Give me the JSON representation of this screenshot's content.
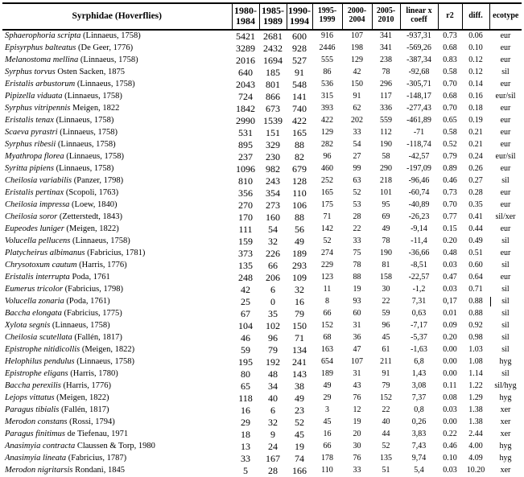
{
  "table": {
    "headers": [
      "Syrphidae (Hoverflies)",
      "1980-\n1984",
      "1985-\n1989",
      "1990-\n1994",
      "1995-\n1999",
      "2000-\n2004",
      "2005-\n2010",
      "linear x\ncoeff",
      "r2",
      "diff.",
      "ecotype"
    ],
    "rows": [
      {
        "species": "Sphaerophoria scripta",
        "author": "(Linnaeus, 1758)",
        "counts": [
          "5421",
          "2681",
          "600",
          "916",
          "107",
          "341"
        ],
        "coeff": "-937,31",
        "r2": "0.73",
        "diff": "0.06",
        "ecotype": "eur",
        "stray_bar": false
      },
      {
        "species": "Episyrphus balteatus",
        "author": "(De Geer, 1776)",
        "counts": [
          "3289",
          "2432",
          "928",
          "2446",
          "198",
          "341"
        ],
        "coeff": "-569,26",
        "r2": "0.68",
        "diff": "0.10",
        "ecotype": "eur",
        "stray_bar": false
      },
      {
        "species": "Melanostoma mellina",
        "author": "(Linnaeus, 1758)",
        "counts": [
          "2016",
          "1694",
          "527",
          "555",
          "129",
          "238"
        ],
        "coeff": "-387,34",
        "r2": "0.83",
        "diff": "0.12",
        "ecotype": "eur",
        "stray_bar": false
      },
      {
        "species": "Syrphus torvus",
        "author": "Osten Sacken, 1875",
        "counts": [
          "640",
          "185",
          "91",
          "86",
          "42",
          "78"
        ],
        "coeff": "-92,68",
        "r2": "0.58",
        "diff": "0.12",
        "ecotype": "sil",
        "stray_bar": false
      },
      {
        "species": "Eristalis arbustorum",
        "author": "(Linnaeus, 1758)",
        "counts": [
          "2043",
          "801",
          "548",
          "536",
          "150",
          "296"
        ],
        "coeff": "-305,71",
        "r2": "0.70",
        "diff": "0.14",
        "ecotype": "eur",
        "stray_bar": false
      },
      {
        "species": "Pipizella viduata",
        "author": "(Linnaeus, 1758)",
        "counts": [
          "724",
          "866",
          "141",
          "315",
          "91",
          "117"
        ],
        "coeff": "-148,17",
        "r2": "0.68",
        "diff": "0.16",
        "ecotype": "eur/sil",
        "stray_bar": false
      },
      {
        "species": "Syrphus vitripennis",
        "author": "Meigen, 1822",
        "counts": [
          "1842",
          "673",
          "740",
          "393",
          "62",
          "336"
        ],
        "coeff": "-277,43",
        "r2": "0.70",
        "diff": "0.18",
        "ecotype": "eur",
        "stray_bar": false
      },
      {
        "species": "Eristalis tenax",
        "author": "(Linnaeus, 1758)",
        "counts": [
          "2990",
          "1539",
          "422",
          "422",
          "202",
          "559"
        ],
        "coeff": "-461,89",
        "r2": "0.65",
        "diff": "0.19",
        "ecotype": "eur",
        "stray_bar": false
      },
      {
        "species": "Scaeva pyrastri",
        "author": "(Linnaeus, 1758)",
        "counts": [
          "531",
          "151",
          "165",
          "129",
          "33",
          "112"
        ],
        "coeff": "-71",
        "r2": "0.58",
        "diff": "0.21",
        "ecotype": "eur",
        "stray_bar": false
      },
      {
        "species": "Syrphus ribesii",
        "author": "(Linnaeus, 1758)",
        "counts": [
          "895",
          "329",
          "88",
          "282",
          "54",
          "190"
        ],
        "coeff": "-118,74",
        "r2": "0.52",
        "diff": "0.21",
        "ecotype": "eur",
        "stray_bar": false
      },
      {
        "species": "Myathropa florea",
        "author": "(Linnaeus, 1758)",
        "counts": [
          "237",
          "230",
          "82",
          "96",
          "27",
          "58"
        ],
        "coeff": "-42,57",
        "r2": "0.79",
        "diff": "0.24",
        "ecotype": "eur/sil",
        "stray_bar": false
      },
      {
        "species": "Syritta pipiens",
        "author": "(Linnaeus, 1758)",
        "counts": [
          "1096",
          "982",
          "679",
          "460",
          "99",
          "290"
        ],
        "coeff": "-197,09",
        "r2": "0.89",
        "diff": "0.26",
        "ecotype": "eur",
        "stray_bar": false
      },
      {
        "species": "Cheilosia variabilis",
        "author": "(Panzer, 1798)",
        "counts": [
          "810",
          "243",
          "128",
          "252",
          "63",
          "218"
        ],
        "coeff": "-96,46",
        "r2": "0.46",
        "diff": "0.27",
        "ecotype": "sil",
        "stray_bar": false
      },
      {
        "species": "Eristalis pertinax",
        "author": "(Scopoli, 1763)",
        "counts": [
          "356",
          "354",
          "110",
          "165",
          "52",
          "101"
        ],
        "coeff": "-60,74",
        "r2": "0.73",
        "diff": "0.28",
        "ecotype": "eur",
        "stray_bar": false
      },
      {
        "species": "Cheilosia impressa",
        "author": "(Loew, 1840)",
        "counts": [
          "270",
          "273",
          "106",
          "175",
          "53",
          "95"
        ],
        "coeff": "-40,89",
        "r2": "0.70",
        "diff": "0.35",
        "ecotype": "eur",
        "stray_bar": false
      },
      {
        "species": "Cheilosia soror",
        "author": "(Zetterstedt, 1843)",
        "counts": [
          "170",
          "160",
          "88",
          "71",
          "28",
          "69"
        ],
        "coeff": "-26,23",
        "r2": "0.77",
        "diff": "0.41",
        "ecotype": "sil/xer",
        "stray_bar": false
      },
      {
        "species": "Eupeodes luniger",
        "author": "(Meigen, 1822)",
        "counts": [
          "111",
          "54",
          "56",
          "142",
          "22",
          "49"
        ],
        "coeff": "-9,14",
        "r2": "0.15",
        "diff": "0.44",
        "ecotype": "eur",
        "stray_bar": false
      },
      {
        "species": "Volucella pellucens",
        "author": "(Linnaeus, 1758)",
        "counts": [
          "159",
          "32",
          "49",
          "52",
          "33",
          "78"
        ],
        "coeff": "-11,4",
        "r2": "0.20",
        "diff": "0.49",
        "ecotype": "sil",
        "stray_bar": false
      },
      {
        "species": "Platycheirus albimanus",
        "author": "(Fabricius, 1781)",
        "counts": [
          "373",
          "226",
          "189",
          "274",
          "75",
          "190"
        ],
        "coeff": "-36,66",
        "r2": "0.48",
        "diff": "0.51",
        "ecotype": "eur",
        "stray_bar": false
      },
      {
        "species": "Chrysotoxum cautum",
        "author": "(Harris, 1776)",
        "counts": [
          "135",
          "66",
          "293",
          "229",
          "78",
          "81"
        ],
        "coeff": "-8,51",
        "r2": "0.03",
        "diff": "0.60",
        "ecotype": "sil",
        "stray_bar": false
      },
      {
        "species": "Eristalis interrupta",
        "author": "Poda, 1761",
        "counts": [
          "248",
          "206",
          "109",
          "123",
          "88",
          "158"
        ],
        "coeff": "-22,57",
        "r2": "0.47",
        "diff": "0.64",
        "ecotype": "eur",
        "stray_bar": false
      },
      {
        "species": "Eumerus tricolor",
        "author": "(Fabricius, 1798)",
        "counts": [
          "42",
          "6",
          "32",
          "11",
          "19",
          "30"
        ],
        "coeff": "-1,2",
        "r2": "0.03",
        "diff": "0.71",
        "ecotype": "sil",
        "stray_bar": false
      },
      {
        "species": "Volucella zonaria",
        "author": "(Poda, 1761)",
        "counts": [
          "25",
          "0",
          "16",
          "8",
          "93",
          "22"
        ],
        "coeff": "7,31",
        "r2": "0,17",
        "diff": "0.88",
        "ecotype": "sil",
        "stray_bar": true
      },
      {
        "species": "Baccha elongata",
        "author": "(Fabricius, 1775)",
        "counts": [
          "67",
          "35",
          "79",
          "66",
          "60",
          "59"
        ],
        "coeff": "0,63",
        "r2": "0.01",
        "diff": "0.88",
        "ecotype": "sil",
        "stray_bar": false
      },
      {
        "species": "Xylota segnis",
        "author": "(Linnaeus, 1758)",
        "counts": [
          "104",
          "102",
          "150",
          "152",
          "31",
          "96"
        ],
        "coeff": "-7,17",
        "r2": "0.09",
        "diff": "0.92",
        "ecotype": "sil",
        "stray_bar": false
      },
      {
        "species": "Cheilosia scutellata",
        "author": "(Fallén, 1817)",
        "counts": [
          "46",
          "96",
          "71",
          "68",
          "36",
          "45"
        ],
        "coeff": "-5,37",
        "r2": "0.20",
        "diff": "0.98",
        "ecotype": "sil",
        "stray_bar": false
      },
      {
        "species": "Epistrophe nitidicollis",
        "author": "(Meigen, 1822)",
        "counts": [
          "59",
          "79",
          "134",
          "163",
          "47",
          "61"
        ],
        "coeff": "-1,63",
        "r2": "0.00",
        "diff": "1.03",
        "ecotype": "sil",
        "stray_bar": false
      },
      {
        "species": "Helophilus pendulus",
        "author": "(Linnaeus, 1758)",
        "counts": [
          "195",
          "192",
          "241",
          "654",
          "107",
          "211"
        ],
        "coeff": "6,8",
        "r2": "0.00",
        "diff": "1.08",
        "ecotype": "hyg",
        "stray_bar": false
      },
      {
        "species": "Epistrophe eligans",
        "author": "(Harris, 1780)",
        "counts": [
          "80",
          "48",
          "143",
          "189",
          "31",
          "91"
        ],
        "coeff": "1,43",
        "r2": "0.00",
        "diff": "1.14",
        "ecotype": "sil",
        "stray_bar": false
      },
      {
        "species": "Baccha perexilis",
        "author": "(Harris, 1776)",
        "counts": [
          "65",
          "34",
          "38",
          "49",
          "43",
          "79"
        ],
        "coeff": "3,08",
        "r2": "0.11",
        "diff": "1.22",
        "ecotype": "sil/hyg",
        "stray_bar": false
      },
      {
        "species": "Lejops vittatus",
        "author": "(Meigen, 1822)",
        "counts": [
          "118",
          "40",
          "49",
          "29",
          "76",
          "152"
        ],
        "coeff": "7,37",
        "r2": "0.08",
        "diff": "1.29",
        "ecotype": "hyg",
        "stray_bar": false
      },
      {
        "species": "Paragus tibialis",
        "author": "(Fallén, 1817)",
        "counts": [
          "16",
          "6",
          "23",
          "3",
          "12",
          "22"
        ],
        "coeff": "0,8",
        "r2": "0.03",
        "diff": "1.38",
        "ecotype": "xer",
        "stray_bar": false
      },
      {
        "species": "Merodon constans",
        "author": "(Rossi, 1794)",
        "counts": [
          "29",
          "32",
          "52",
          "45",
          "19",
          "40"
        ],
        "coeff": "0,26",
        "r2": "0.00",
        "diff": "1.38",
        "ecotype": "xer",
        "stray_bar": false
      },
      {
        "species": "Paragus finitimus",
        "author": "de Tiefenau, 1971",
        "counts": [
          "18",
          "9",
          "45",
          "16",
          "20",
          "44"
        ],
        "coeff": "3,83",
        "r2": "0.22",
        "diff": "2.44",
        "ecotype": "xer",
        "stray_bar": false
      },
      {
        "species": "Anasimyia contracta",
        "author": "Claussen & Torp, 1980",
        "counts": [
          "13",
          "24",
          "19",
          "66",
          "30",
          "52"
        ],
        "coeff": "7,43",
        "r2": "0.46",
        "diff": "4.00",
        "ecotype": "hyg",
        "stray_bar": false
      },
      {
        "species": "Anasimyia lineata",
        "author": "(Fabricius, 1787)",
        "counts": [
          "33",
          "167",
          "74",
          "178",
          "76",
          "135"
        ],
        "coeff": "9,74",
        "r2": "0.10",
        "diff": "4.09",
        "ecotype": "hyg",
        "stray_bar": false
      },
      {
        "species": "Merodon nigritarsis",
        "author": "Rondani, 1845",
        "counts": [
          "5",
          "28",
          "166",
          "110",
          "33",
          "51"
        ],
        "coeff": "5,4",
        "r2": "0.03",
        "diff": "10.20",
        "ecotype": "xer",
        "stray_bar": false
      }
    ]
  }
}
